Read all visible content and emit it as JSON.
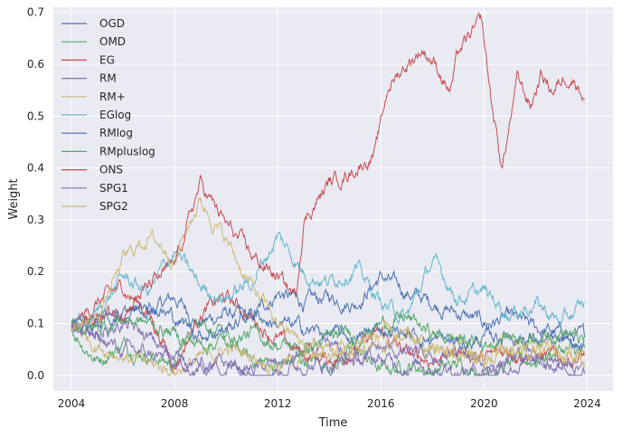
{
  "chart_data": {
    "type": "line",
    "title": "",
    "xlabel": "Time",
    "ylabel": "Weight",
    "xlim": [
      2003.3,
      2025.0
    ],
    "ylim": [
      -0.03,
      0.71
    ],
    "x_ticks": [
      2004,
      2008,
      2012,
      2016,
      2020,
      2024
    ],
    "x_tick_labels": [
      "2004",
      "2008",
      "2012",
      "2016",
      "2020",
      "2024"
    ],
    "y_ticks": [
      0.0,
      0.1,
      0.2,
      0.3,
      0.4,
      0.5,
      0.6,
      0.7
    ],
    "y_tick_labels": [
      "0.0",
      "0.1",
      "0.2",
      "0.3",
      "0.4",
      "0.5",
      "0.6",
      "0.7"
    ],
    "grid": true,
    "background": "#eaeaf2",
    "legend_position": "top-left",
    "series": [
      {
        "name": "OGD",
        "color": "#4c72b0",
        "x": [
          2004,
          2005,
          2006,
          2007,
          2008,
          2009,
          2010,
          2011,
          2012,
          2013,
          2014,
          2015,
          2016,
          2017,
          2018,
          2019,
          2020,
          2021,
          2022,
          2023,
          2024
        ],
        "y": [
          0.09,
          0.11,
          0.13,
          0.12,
          0.15,
          0.1,
          0.12,
          0.11,
          0.16,
          0.14,
          0.15,
          0.14,
          0.19,
          0.16,
          0.14,
          0.12,
          0.1,
          0.11,
          0.09,
          0.08,
          0.07
        ]
      },
      {
        "name": "OMD",
        "color": "#55a868",
        "x": [
          2004,
          2005,
          2006,
          2007,
          2008,
          2009,
          2010,
          2011,
          2012,
          2013,
          2014,
          2015,
          2016,
          2017,
          2018,
          2019,
          2020,
          2021,
          2022,
          2023,
          2024
        ],
        "y": [
          0.09,
          0.03,
          0.06,
          0.04,
          0.02,
          0.12,
          0.06,
          0.03,
          0.02,
          0.03,
          0.02,
          0.05,
          0.01,
          0.02,
          0.01,
          0.02,
          0.01,
          0.02,
          0.03,
          0.05,
          0.04
        ]
      },
      {
        "name": "EG",
        "color": "#c44e52",
        "x": [
          2004,
          2005,
          2006,
          2007,
          2008,
          2009,
          2010,
          2011,
          2012,
          2013,
          2014,
          2015,
          2016,
          2017,
          2018,
          2019,
          2020,
          2021,
          2022,
          2023,
          2024
        ],
        "y": [
          0.09,
          0.14,
          0.17,
          0.12,
          0.02,
          0.12,
          0.15,
          0.11,
          0.07,
          0.04,
          0.03,
          0.05,
          0.08,
          0.04,
          0.03,
          0.05,
          0.03,
          0.05,
          0.04,
          0.03,
          0.04
        ]
      },
      {
        "name": "RM",
        "color": "#8172b2",
        "x": [
          2004,
          2005,
          2006,
          2007,
          2008,
          2009,
          2010,
          2011,
          2012,
          2013,
          2014,
          2015,
          2016,
          2017,
          2018,
          2019,
          2020,
          2021,
          2022,
          2023,
          2024
        ],
        "y": [
          0.09,
          0.08,
          0.1,
          0.07,
          0.03,
          0.01,
          0.02,
          0.01,
          0.02,
          0.04,
          0.05,
          0.04,
          0.05,
          0.04,
          0.03,
          0.04,
          0.02,
          0.03,
          0.03,
          0.01,
          0.01
        ]
      },
      {
        "name": "RM+",
        "color": "#ccb974",
        "x": [
          2004,
          2005,
          2006,
          2007,
          2008,
          2009,
          2010,
          2011,
          2012,
          2013,
          2014,
          2015,
          2016,
          2017,
          2018,
          2019,
          2020,
          2021,
          2022,
          2023,
          2024
        ],
        "y": [
          0.1,
          0.06,
          0.04,
          0.02,
          0.01,
          0.03,
          0.05,
          0.04,
          0.02,
          0.03,
          0.04,
          0.06,
          0.05,
          0.08,
          0.04,
          0.06,
          0.03,
          0.05,
          0.06,
          0.04,
          0.03
        ]
      },
      {
        "name": "EGlog",
        "color": "#64b5cd",
        "x": [
          2004,
          2005,
          2006,
          2007,
          2008,
          2009,
          2010,
          2011,
          2012,
          2013,
          2014,
          2015,
          2016,
          2017,
          2018,
          2019,
          2020,
          2021,
          2022,
          2023,
          2024
        ],
        "y": [
          0.09,
          0.12,
          0.19,
          0.16,
          0.24,
          0.17,
          0.15,
          0.18,
          0.27,
          0.2,
          0.18,
          0.21,
          0.14,
          0.11,
          0.22,
          0.15,
          0.16,
          0.12,
          0.14,
          0.1,
          0.14
        ]
      },
      {
        "name": "RMlog",
        "color": "#4c72b0",
        "x": [
          2004,
          2005,
          2006,
          2007,
          2008,
          2009,
          2010,
          2011,
          2012,
          2013,
          2014,
          2015,
          2016,
          2017,
          2018,
          2019,
          2020,
          2021,
          2022,
          2023,
          2024
        ],
        "y": [
          0.09,
          0.1,
          0.12,
          0.14,
          0.11,
          0.08,
          0.09,
          0.12,
          0.1,
          0.09,
          0.08,
          0.07,
          0.09,
          0.08,
          0.07,
          0.06,
          0.07,
          0.08,
          0.07,
          0.06,
          0.05
        ]
      },
      {
        "name": "RMpluslog",
        "color": "#55a868",
        "x": [
          2004,
          2005,
          2006,
          2007,
          2008,
          2009,
          2010,
          2011,
          2012,
          2013,
          2014,
          2015,
          2016,
          2017,
          2018,
          2019,
          2020,
          2021,
          2022,
          2023,
          2024
        ],
        "y": [
          0.1,
          0.09,
          0.11,
          0.1,
          0.08,
          0.06,
          0.07,
          0.08,
          0.06,
          0.05,
          0.07,
          0.08,
          0.1,
          0.11,
          0.08,
          0.07,
          0.06,
          0.08,
          0.07,
          0.09,
          0.06
        ]
      },
      {
        "name": "ONS",
        "color": "#c44e52",
        "x": [
          2004,
          2005,
          2006,
          2007,
          2008,
          2009,
          2010,
          2011,
          2012,
          2012.7,
          2013,
          2014,
          2015,
          2015.8,
          2016.3,
          2017,
          2017.6,
          2018,
          2018.7,
          2019,
          2019.9,
          2020.3,
          2020.7,
          2021.3,
          2021.8,
          2022.2,
          2022.7,
          2023.2,
          2023.6,
          2024
        ],
        "y": [
          0.09,
          0.11,
          0.13,
          0.17,
          0.21,
          0.37,
          0.29,
          0.23,
          0.19,
          0.15,
          0.3,
          0.37,
          0.4,
          0.43,
          0.56,
          0.6,
          0.63,
          0.61,
          0.55,
          0.62,
          0.68,
          0.52,
          0.4,
          0.57,
          0.52,
          0.58,
          0.55,
          0.58,
          0.57,
          0.53
        ]
      },
      {
        "name": "SPG1",
        "color": "#8172b2",
        "x": [
          2004,
          2005,
          2006,
          2007,
          2008,
          2009,
          2010,
          2011,
          2012,
          2013,
          2014,
          2015,
          2016,
          2017,
          2018,
          2019,
          2020,
          2021,
          2022,
          2023,
          2024
        ],
        "y": [
          0.09,
          0.07,
          0.05,
          0.04,
          0.03,
          0.02,
          0.02,
          0.01,
          0.01,
          0.02,
          0.02,
          0.03,
          0.03,
          0.02,
          0.02,
          0.01,
          0.01,
          0.02,
          0.02,
          0.01,
          0.01
        ]
      },
      {
        "name": "SPG2",
        "color": "#ccb974",
        "x": [
          2004,
          2005,
          2006,
          2007,
          2008,
          2009,
          2010,
          2011,
          2012,
          2013,
          2014,
          2015,
          2016,
          2017,
          2018,
          2019,
          2020,
          2021,
          2022,
          2023,
          2024
        ],
        "y": [
          0.09,
          0.11,
          0.22,
          0.27,
          0.23,
          0.34,
          0.26,
          0.17,
          0.1,
          0.06,
          0.05,
          0.06,
          0.08,
          0.07,
          0.05,
          0.04,
          0.03,
          0.04,
          0.05,
          0.04,
          0.03
        ]
      }
    ]
  }
}
